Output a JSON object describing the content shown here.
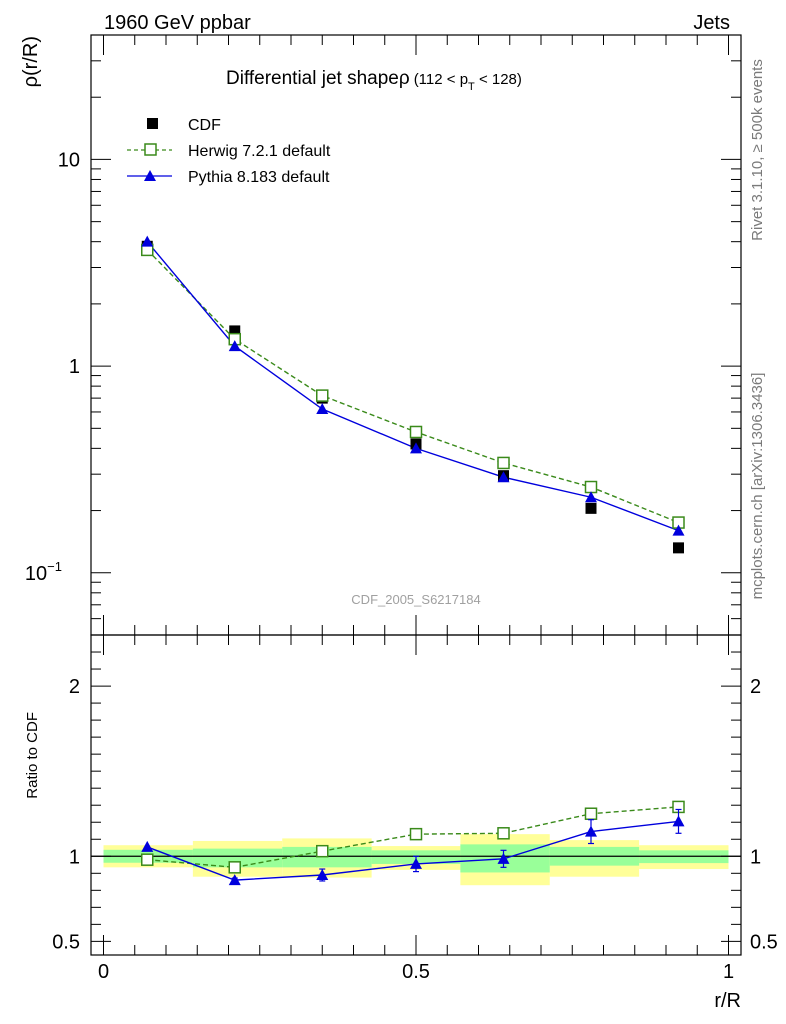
{
  "header": {
    "beam_label": "1960 GeV ppbar",
    "category_label": "Jets",
    "rivet_label": "Rivet 3.1.10, ≥ 500k events",
    "mcplots_label": "mcplots.cern.ch [arXiv:1306.3436]",
    "analysis_id": "CDF_2005_S6217184"
  },
  "chart_data": [
    {
      "type": "line",
      "panel": "main",
      "title": "Differential jet shapeρ",
      "title_suffix": "(112 < p",
      "title_sub": "T",
      "title_end": " < 128)",
      "ylabel": "ρ(r/R)",
      "xlabel": "r/R",
      "yscale": "log",
      "xlim": [
        -0.02,
        1.02
      ],
      "ylim": [
        0.05,
        40
      ],
      "yticks": [
        {
          "value": 10,
          "label": "10"
        },
        {
          "value": 1,
          "label": "1"
        },
        {
          "value": 0.1,
          "label": "10",
          "sup": "−1"
        }
      ],
      "x": [
        0.07,
        0.21,
        0.35,
        0.5,
        0.64,
        0.78,
        0.92
      ],
      "series": [
        {
          "name": "CDF",
          "marker": "square-filled",
          "color": "#000000",
          "values": [
            3.8,
            1.48,
            0.7,
            0.42,
            0.295,
            0.205,
            0.132
          ]
        },
        {
          "name": "Herwig 7.2.1 default",
          "marker": "square-open",
          "color": "#3a8a1a",
          "dash": true,
          "values": [
            3.65,
            1.35,
            0.72,
            0.48,
            0.34,
            0.26,
            0.175
          ]
        },
        {
          "name": "Pythia 8.183 default",
          "marker": "triangle-filled",
          "color": "#0000dd",
          "values": [
            4.0,
            1.25,
            0.62,
            0.4,
            0.29,
            0.232,
            0.16
          ]
        }
      ]
    },
    {
      "type": "line",
      "panel": "ratio",
      "ylabel": "Ratio to CDF",
      "xlabel": "r/R",
      "xlim": [
        -0.02,
        1.02
      ],
      "ylim": [
        0.42,
        2.3
      ],
      "yticks": [
        {
          "value": 0.5,
          "label": "0.5"
        },
        {
          "value": 1,
          "label": "1"
        },
        {
          "value": 2,
          "label": "2"
        }
      ],
      "xticks": [
        {
          "value": 0,
          "label": "0"
        },
        {
          "value": 0.5,
          "label": "0.5"
        },
        {
          "value": 1,
          "label": "1"
        }
      ],
      "bands": [
        {
          "x0": 0.0,
          "x1": 0.143,
          "yellow": [
            0.935,
            1.065
          ],
          "green": [
            0.962,
            1.038
          ]
        },
        {
          "x0": 0.143,
          "x1": 0.286,
          "yellow": [
            0.88,
            1.09
          ],
          "green": [
            0.935,
            1.045
          ]
        },
        {
          "x0": 0.286,
          "x1": 0.429,
          "yellow": [
            0.875,
            1.105
          ],
          "green": [
            0.935,
            1.055
          ]
        },
        {
          "x0": 0.429,
          "x1": 0.571,
          "yellow": [
            0.92,
            1.06
          ],
          "green": [
            0.955,
            1.035
          ]
        },
        {
          "x0": 0.571,
          "x1": 0.714,
          "yellow": [
            0.83,
            1.13
          ],
          "green": [
            0.905,
            1.07
          ]
        },
        {
          "x0": 0.714,
          "x1": 0.857,
          "yellow": [
            0.88,
            1.095
          ],
          "green": [
            0.945,
            1.055
          ]
        },
        {
          "x0": 0.857,
          "x1": 1.0,
          "yellow": [
            0.925,
            1.065
          ],
          "green": [
            0.96,
            1.035
          ]
        }
      ],
      "x": [
        0.07,
        0.21,
        0.35,
        0.5,
        0.64,
        0.78,
        0.92
      ],
      "series": [
        {
          "name": "Herwig 7.2.1 default",
          "marker": "square-open",
          "color": "#3a8a1a",
          "dash": true,
          "values": [
            0.98,
            0.935,
            1.03,
            1.13,
            1.135,
            1.25,
            1.29
          ],
          "errors": [
            0,
            0,
            0,
            0,
            0,
            0,
            0
          ]
        },
        {
          "name": "Pythia 8.183 default",
          "marker": "triangle-filled",
          "color": "#0000dd",
          "values": [
            1.055,
            0.86,
            0.89,
            0.955,
            0.985,
            1.145,
            1.205
          ],
          "errors": [
            0,
            0.012,
            0.035,
            0.045,
            0.05,
            0.07,
            0.07
          ]
        }
      ]
    }
  ]
}
